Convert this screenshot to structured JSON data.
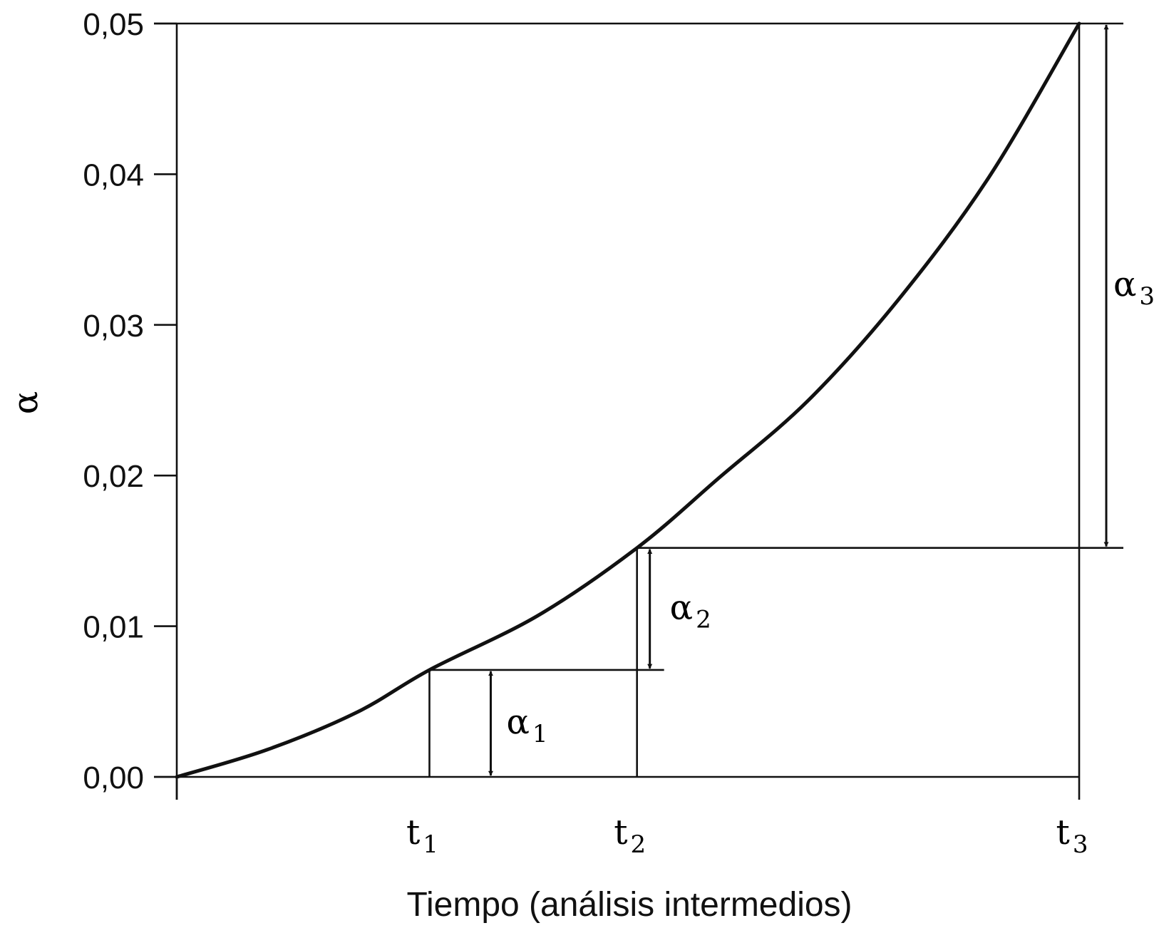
{
  "chart_data": {
    "type": "line",
    "xlabel": "Tiempo (análisis intermedios)",
    "ylabel": "α",
    "ylim": [
      0,
      0.05
    ],
    "y_ticks": [
      "0,00",
      "0,01",
      "0,02",
      "0,03",
      "0,04",
      "0,05"
    ],
    "y_tick_values": [
      0,
      0.01,
      0.02,
      0.03,
      0.04,
      0.05
    ],
    "xlim": [
      0,
      1
    ],
    "x_ticks": [
      {
        "base": "t",
        "sub": "1",
        "value": 0.28
      },
      {
        "base": "t",
        "sub": "2",
        "value": 0.51
      },
      {
        "base": "t",
        "sub": "3",
        "value": 1.0
      }
    ],
    "series": [
      {
        "x": [
          0,
          0.1,
          0.2,
          0.28,
          0.4,
          0.51,
          0.6,
          0.7,
          0.8,
          0.9,
          1.0
        ],
        "y": [
          0,
          0.0018,
          0.0043,
          0.0071,
          0.0107,
          0.0152,
          0.0198,
          0.025,
          0.0317,
          0.0398,
          0.05
        ]
      }
    ],
    "annotations": [
      {
        "base": "α",
        "sub": "1",
        "from": 0,
        "to": 0.0071
      },
      {
        "base": "α",
        "sub": "2",
        "from": 0.0071,
        "to": 0.0152
      },
      {
        "base": "α",
        "sub": "3",
        "from": 0.0152,
        "to": 0.05
      }
    ],
    "grid": false,
    "color": "#111111"
  }
}
